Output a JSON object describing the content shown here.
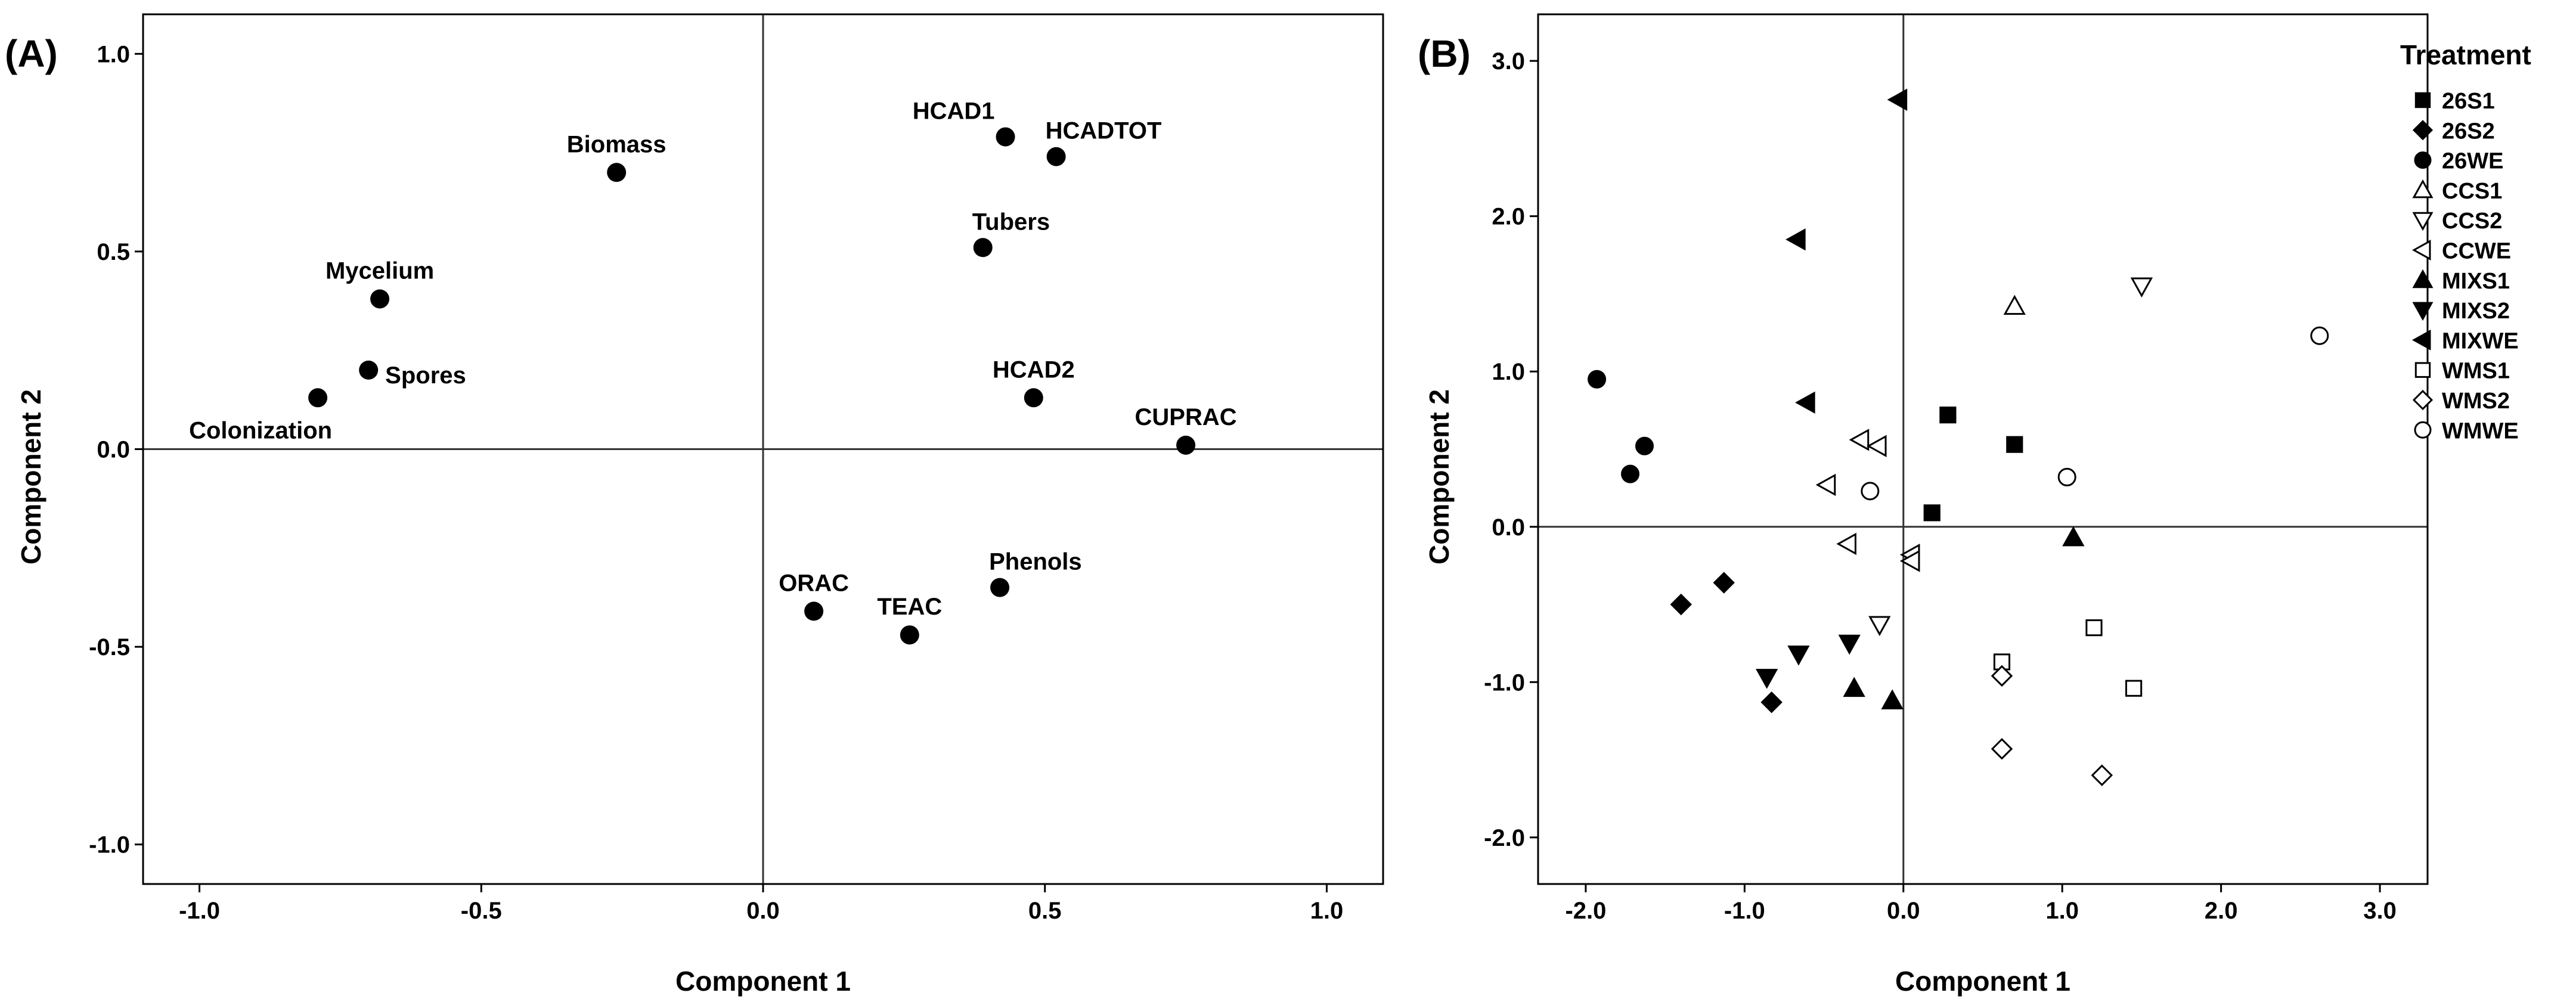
{
  "chart_data": [
    {
      "type": "scatter",
      "panel_label": "(A)",
      "title": "",
      "xlabel": "Component 1",
      "ylabel": "Component 2",
      "xlim": [
        -1.1,
        1.1
      ],
      "ylim": [
        -1.1,
        1.1
      ],
      "xticks": [
        -1.0,
        -0.5,
        0.0,
        0.5,
        1.0
      ],
      "xtick_labels": [
        "-1.0",
        "-0.5",
        "0.0",
        "0.5",
        "1.0"
      ],
      "yticks": [
        -1.0,
        -0.5,
        0.0,
        0.5,
        1.0
      ],
      "ytick_labels": [
        "-1.0",
        "-0.5",
        "0.0",
        "0.5",
        "1.0"
      ],
      "grid": false,
      "reference_lines": {
        "x": 0,
        "y": 0
      },
      "points": [
        {
          "label": "Biomass",
          "x": -0.26,
          "y": 0.7,
          "label_pos": "above"
        },
        {
          "label": "Mycelium",
          "x": -0.68,
          "y": 0.38,
          "label_pos": "above"
        },
        {
          "label": "Spores",
          "x": -0.7,
          "y": 0.2,
          "label_pos": "below-right"
        },
        {
          "label": "Colonization",
          "x": -0.79,
          "y": 0.13,
          "label_pos": "below-left"
        },
        {
          "label": "HCAD1",
          "x": 0.43,
          "y": 0.79,
          "label_pos": "above-left"
        },
        {
          "label": "HCADTOT",
          "x": 0.52,
          "y": 0.74,
          "label_pos": "above-right"
        },
        {
          "label": "Tubers",
          "x": 0.39,
          "y": 0.51,
          "label_pos": "above-right"
        },
        {
          "label": "HCAD2",
          "x": 0.48,
          "y": 0.13,
          "label_pos": "above"
        },
        {
          "label": "CUPRAC",
          "x": 0.75,
          "y": 0.01,
          "label_pos": "above"
        },
        {
          "label": "Phenols",
          "x": 0.42,
          "y": -0.35,
          "label_pos": "above-right"
        },
        {
          "label": "ORAC",
          "x": 0.09,
          "y": -0.41,
          "label_pos": "above"
        },
        {
          "label": "TEAC",
          "x": 0.26,
          "y": -0.47,
          "label_pos": "above"
        }
      ]
    },
    {
      "type": "scatter",
      "panel_label": "(B)",
      "title": "",
      "xlabel": "Component 1",
      "ylabel": "Component 2",
      "xlim": [
        -2.3,
        3.3
      ],
      "ylim": [
        -2.3,
        3.3
      ],
      "xticks": [
        -2.0,
        -1.0,
        0.0,
        1.0,
        2.0,
        3.0
      ],
      "xtick_labels": [
        "-2.0",
        "-1.0",
        "0.0",
        "1.0",
        "2.0",
        "3.0"
      ],
      "yticks": [
        -2.0,
        -1.0,
        0.0,
        1.0,
        2.0,
        3.0
      ],
      "ytick_labels": [
        "-2.0",
        "-1.0",
        "0.0",
        "1.0",
        "2.0",
        "3.0"
      ],
      "grid": false,
      "reference_lines": {
        "x": 0,
        "y": 0
      },
      "legend": {
        "title": "Treatment",
        "placement": "outside-right",
        "entries": [
          {
            "name": "26S1",
            "marker": "square",
            "filled": true
          },
          {
            "name": "26S2",
            "marker": "diamond",
            "filled": true
          },
          {
            "name": "26WE",
            "marker": "circle",
            "filled": true
          },
          {
            "name": "CCS1",
            "marker": "triangle-up",
            "filled": false
          },
          {
            "name": "CCS2",
            "marker": "triangle-down",
            "filled": false
          },
          {
            "name": "CCWE",
            "marker": "triangle-left",
            "filled": false
          },
          {
            "name": "MIXS1",
            "marker": "triangle-up",
            "filled": true
          },
          {
            "name": "MIXS2",
            "marker": "triangle-down",
            "filled": true
          },
          {
            "name": "MIXWE",
            "marker": "triangle-left",
            "filled": true
          },
          {
            "name": "WMS1",
            "marker": "square",
            "filled": false
          },
          {
            "name": "WMS2",
            "marker": "diamond",
            "filled": false
          },
          {
            "name": "WMWE",
            "marker": "circle",
            "filled": false
          }
        ]
      },
      "series": [
        {
          "name": "26S1",
          "points": [
            [
              0.28,
              0.72
            ],
            [
              0.7,
              0.53
            ],
            [
              0.18,
              0.09
            ]
          ]
        },
        {
          "name": "26S2",
          "points": [
            [
              -1.4,
              -0.5
            ],
            [
              -1.13,
              -0.36
            ],
            [
              -0.83,
              -1.13
            ]
          ]
        },
        {
          "name": "26WE",
          "points": [
            [
              -1.93,
              0.95
            ],
            [
              -1.63,
              0.52
            ],
            [
              -1.72,
              0.34
            ]
          ]
        },
        {
          "name": "CCS1",
          "points": [
            [
              0.7,
              1.42
            ]
          ]
        },
        {
          "name": "CCS2",
          "points": [
            [
              1.5,
              1.55
            ],
            [
              -0.15,
              -0.63
            ]
          ]
        },
        {
          "name": "CCWE",
          "points": [
            [
              -0.27,
              0.56
            ],
            [
              -0.16,
              0.52
            ],
            [
              -0.48,
              0.27
            ],
            [
              -0.35,
              -0.11
            ],
            [
              0.05,
              -0.18
            ],
            [
              0.05,
              -0.22
            ]
          ]
        },
        {
          "name": "MIXS1",
          "points": [
            [
              1.07,
              -0.07
            ],
            [
              -0.31,
              -1.04
            ],
            [
              -0.07,
              -1.12
            ]
          ]
        },
        {
          "name": "MIXS2",
          "points": [
            [
              -0.86,
              -0.97
            ],
            [
              -0.66,
              -0.82
            ],
            [
              -0.34,
              -0.75
            ]
          ]
        },
        {
          "name": "MIXWE",
          "points": [
            [
              -0.03,
              2.75
            ],
            [
              -0.67,
              1.85
            ],
            [
              -0.61,
              0.8
            ]
          ]
        },
        {
          "name": "WMS1",
          "points": [
            [
              1.2,
              -0.65
            ],
            [
              0.62,
              -0.87
            ],
            [
              1.45,
              -1.04
            ]
          ]
        },
        {
          "name": "WMS2",
          "points": [
            [
              0.62,
              -0.96
            ],
            [
              0.62,
              -1.43
            ],
            [
              1.25,
              -1.6
            ]
          ]
        },
        {
          "name": "WMWE",
          "points": [
            [
              2.62,
              1.23
            ],
            [
              1.03,
              0.32
            ],
            [
              -0.21,
              0.23
            ]
          ]
        }
      ]
    }
  ]
}
